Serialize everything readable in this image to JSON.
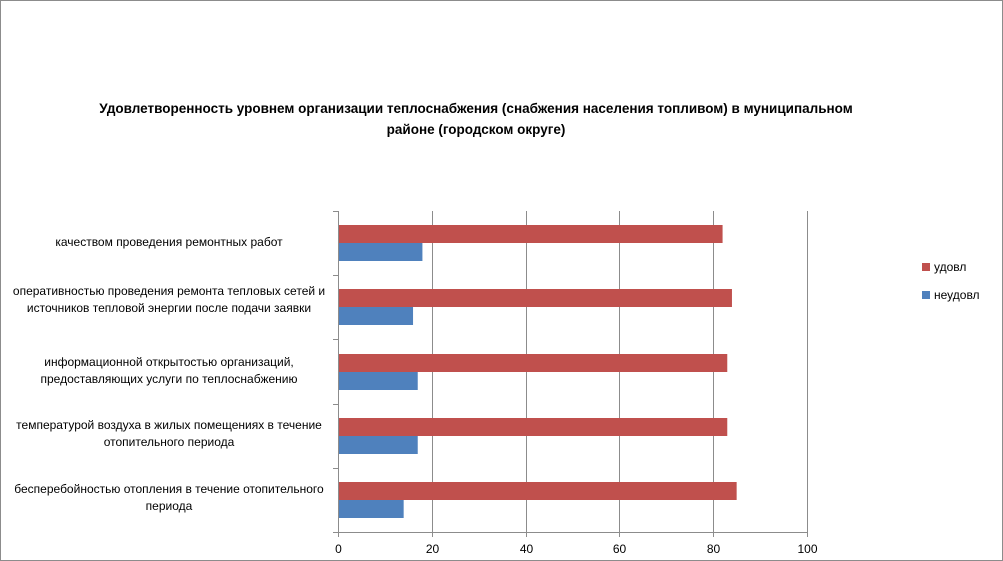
{
  "chart_data": {
    "type": "bar",
    "orientation": "horizontal",
    "title": "Удовлетворенность уровнем организации теплоснабжения (снабжения населения топливом) в муниципальном районе (городском округе)",
    "categories": [
      "качеством проведения ремонтных работ",
      "оперативностью проведения ремонта тепловых сетей и источников тепловой энергии после подачи заявки",
      "информационной открытостью организаций, предоставляющих услуги по теплоснабжению",
      "температурой воздуха в жилых помещениях в течение отопительного периода",
      "бесперебойностью отопления в течение отопительного периода"
    ],
    "series": [
      {
        "name": "удовл",
        "color": "#c0504d",
        "values": [
          82,
          84,
          83,
          83,
          85
        ]
      },
      {
        "name": "неудовл",
        "color": "#4f81bd",
        "values": [
          18,
          16,
          17,
          17,
          14
        ]
      }
    ],
    "xlim": [
      0,
      100
    ],
    "xticks": [
      0,
      20,
      40,
      60,
      80,
      100
    ],
    "xlabel": "",
    "ylabel": "",
    "grid": true,
    "legend_position": "right"
  }
}
